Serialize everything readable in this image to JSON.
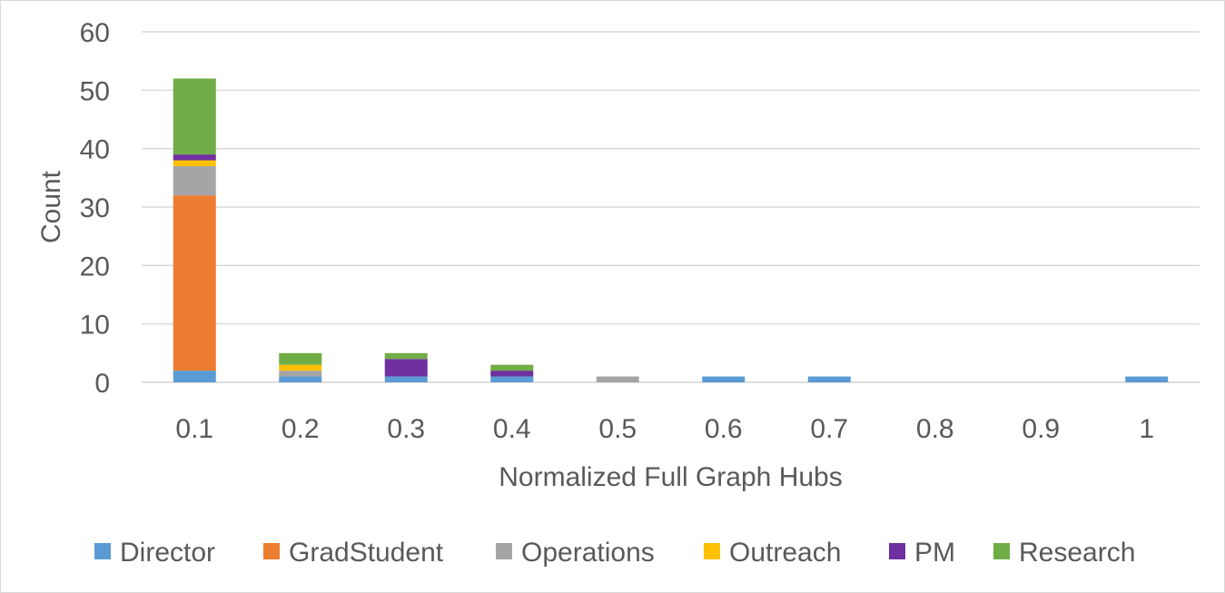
{
  "chart_data": {
    "type": "bar",
    "stacked": true,
    "title": "",
    "xlabel": "Normalized Full Graph Hubs",
    "ylabel": "Count",
    "ylim": [
      0,
      60
    ],
    "yticks": [
      "0",
      "10",
      "20",
      "30",
      "40",
      "50",
      "60"
    ],
    "grid": true,
    "legend_position": "bottom",
    "categories": [
      "0.1",
      "0.2",
      "0.3",
      "0.4",
      "0.5",
      "0.6",
      "0.7",
      "0.8",
      "0.9",
      "1"
    ],
    "series": [
      {
        "name": "Director",
        "color": "#5b9bd5",
        "values": [
          2,
          1,
          1,
          1,
          0,
          1,
          1,
          0,
          0,
          1
        ]
      },
      {
        "name": "GradStudent",
        "color": "#ed7d31",
        "values": [
          30,
          0,
          0,
          0,
          0,
          0,
          0,
          0,
          0,
          0
        ]
      },
      {
        "name": "Operations",
        "color": "#a5a5a5",
        "values": [
          5,
          1,
          0,
          0,
          1,
          0,
          0,
          0,
          0,
          0
        ]
      },
      {
        "name": "Outreach",
        "color": "#ffc000",
        "values": [
          1,
          1,
          0,
          0,
          0,
          0,
          0,
          0,
          0,
          0
        ]
      },
      {
        "name": "PM",
        "color": "#7030a0",
        "values": [
          1,
          0,
          3,
          1,
          0,
          0,
          0,
          0,
          0,
          0
        ]
      },
      {
        "name": "Research",
        "color": "#70ad47",
        "values": [
          13,
          2,
          1,
          1,
          0,
          0,
          0,
          0,
          0,
          0
        ]
      }
    ]
  }
}
